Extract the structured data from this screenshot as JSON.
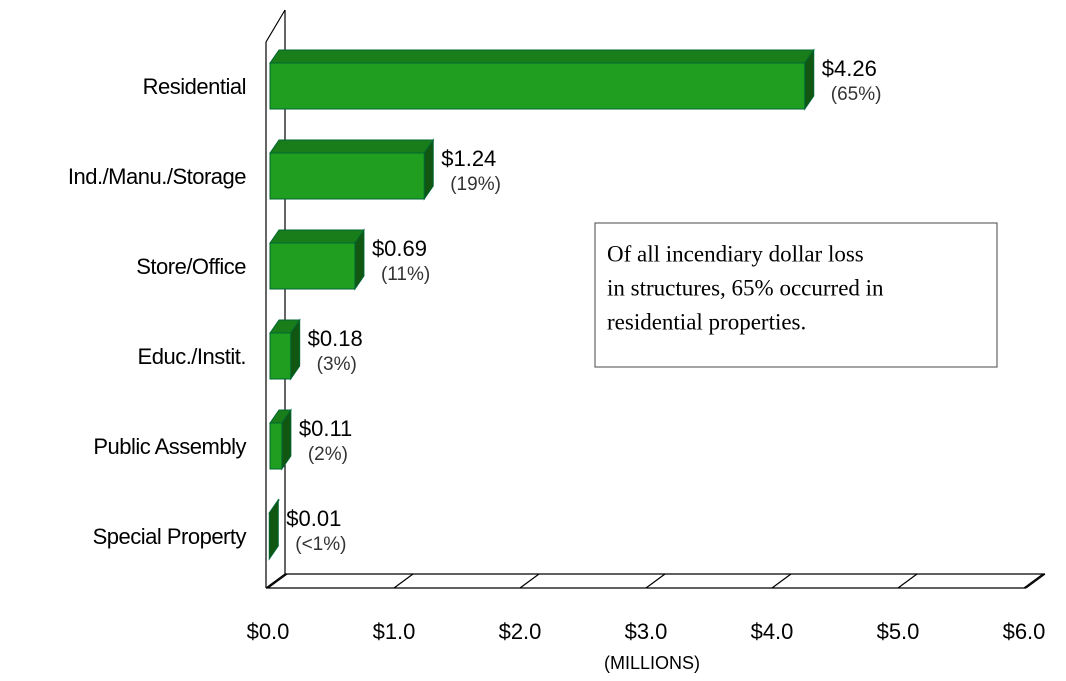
{
  "chart_data": {
    "type": "bar3d_horizontal",
    "categories": [
      "Residential",
      "Ind./Manu./Storage",
      "Store/Office",
      "Educ./Instit.",
      "Public Assembly",
      "Special Property"
    ],
    "values": [
      4.26,
      1.24,
      0.69,
      0.18,
      0.11,
      0.01
    ],
    "value_labels": [
      "$4.26",
      "$1.24",
      "$0.69",
      "$0.18",
      "$0.11",
      "$0.01"
    ],
    "percent_labels": [
      "(65%)",
      "(19%)",
      "(11%)",
      "(3%)",
      "(2%)",
      "(<1%)"
    ],
    "color": "#1f9e1f",
    "xlim": [
      0,
      6
    ],
    "xticks": [
      {
        "value": 0,
        "label": "$0.0"
      },
      {
        "value": 1,
        "label": "$1.0"
      },
      {
        "value": 2,
        "label": "$2.0"
      },
      {
        "value": 3,
        "label": "$3.0"
      },
      {
        "value": 4,
        "label": "$4.0"
      },
      {
        "value": 5,
        "label": "$5.0"
      },
      {
        "value": 6,
        "label": "$6.0"
      }
    ],
    "xlabel": "(MILLIONS)",
    "annotation": [
      "Of all incendiary dollar loss",
      "in structures, 65% occurred in",
      "residential properties."
    ]
  }
}
